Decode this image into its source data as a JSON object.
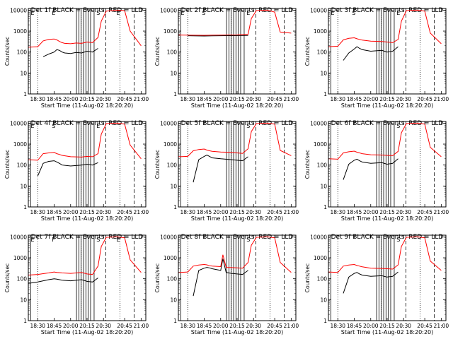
{
  "figure": {
    "xlabel": "Start Time (11-Aug-02 18:20:20)",
    "ylabel": "Counts/sec",
    "xticks": [
      "18:30",
      "18:45",
      "20:00",
      "20:15",
      "20:30",
      "20:45",
      "21:00"
    ],
    "yticks": [
      "1",
      "10",
      "100",
      "1000",
      "10000"
    ],
    "colors": {
      "events": "#000000",
      "lld": "#ff0000",
      "axes": "#000000",
      "background": "#ffffff"
    }
  },
  "chart_data": [
    {
      "type": "line",
      "title": "Det 1f BLACK = Events, RED = LLD",
      "xlabel": "Start Time (11-Aug-02 18:20:20)",
      "ylabel": "Counts/sec",
      "x_ticks": [
        "18:30",
        "18:45",
        "20:00",
        "20:15",
        "20:30",
        "20:45",
        "21:00"
      ],
      "y_scale": "log",
      "ylim": [
        1,
        10000
      ],
      "grid": false,
      "markers": [
        "E",
        "E",
        "S",
        "E"
      ],
      "series": [
        {
          "name": "Events",
          "color": "#000000",
          "x": [
            "18:35",
            "18:40",
            "18:45",
            "18:50",
            "18:55",
            "19:00",
            "19:05",
            "20:00",
            "20:05",
            "20:10",
            "20:15",
            "20:20",
            "20:25"
          ],
          "y": [
            60,
            80,
            100,
            130,
            120,
            100,
            90,
            85,
            95,
            90,
            110,
            100,
            150
          ]
        },
        {
          "name": "LLD",
          "color": "#ff0000",
          "x": [
            "18:20",
            "18:30",
            "18:35",
            "18:40",
            "18:45",
            "18:50",
            "18:55",
            "19:00",
            "19:05",
            "20:00",
            "20:05",
            "20:10",
            "20:15",
            "20:20",
            "20:25",
            "20:28",
            "20:32",
            "20:40",
            "20:45",
            "20:50",
            "21:00"
          ],
          "y": [
            170,
            180,
            340,
            400,
            420,
            380,
            320,
            280,
            260,
            250,
            270,
            260,
            300,
            280,
            500,
            3000,
            9000,
            10000,
            9500,
            1000,
            200
          ]
        }
      ]
    },
    {
      "type": "line",
      "title": "Det 2f BLACK = Events, RED = LLD",
      "xlabel": "Start Time (11-Aug-02 18:20:20)",
      "ylabel": "Counts/sec",
      "x_ticks": [
        "18:30",
        "18:45",
        "20:00",
        "20:15",
        "20:30",
        "20:45",
        "21:00"
      ],
      "y_scale": "log",
      "ylim": [
        1,
        10000
      ],
      "grid": false,
      "markers": [
        "E",
        "S",
        "E"
      ],
      "series": [
        {
          "name": "Events",
          "color": "#000000",
          "x": [
            "18:30",
            "18:45",
            "19:00",
            "20:00",
            "20:15",
            "20:25"
          ],
          "y": [
            600,
            580,
            590,
            600,
            610,
            620
          ]
        },
        {
          "name": "LLD",
          "color": "#ff0000",
          "x": [
            "18:20",
            "18:30",
            "18:45",
            "19:00",
            "20:00",
            "20:15",
            "20:25",
            "20:28",
            "20:32",
            "20:40",
            "20:45",
            "20:50",
            "21:00"
          ],
          "y": [
            650,
            640,
            630,
            640,
            650,
            660,
            700,
            4000,
            9500,
            10000,
            8000,
            900,
            800
          ]
        }
      ]
    },
    {
      "type": "line",
      "title": "Det 3f BLACK = Events, RED = LLD",
      "xlabel": "Start Time (11-Aug-02 18:20:20)",
      "ylabel": "Counts/sec",
      "x_ticks": [
        "18:30",
        "18:45",
        "20:00",
        "20:15",
        "20:30",
        "20:45",
        "21:00"
      ],
      "y_scale": "log",
      "ylim": [
        1,
        10000
      ],
      "grid": false,
      "markers": [
        "E",
        "S",
        "E"
      ],
      "series": [
        {
          "name": "Events",
          "color": "#000000",
          "x": [
            "18:35",
            "18:40",
            "18:45",
            "18:50",
            "18:55",
            "19:00",
            "20:00",
            "20:10",
            "20:15",
            "20:20",
            "20:25"
          ],
          "y": [
            40,
            90,
            140,
            180,
            150,
            130,
            110,
            120,
            100,
            110,
            180
          ]
        },
        {
          "name": "LLD",
          "color": "#ff0000",
          "x": [
            "18:20",
            "18:30",
            "18:35",
            "18:40",
            "18:45",
            "18:50",
            "18:55",
            "19:00",
            "20:00",
            "20:10",
            "20:15",
            "20:20",
            "20:25",
            "20:28",
            "20:32",
            "20:40",
            "20:45",
            "20:50",
            "21:00"
          ],
          "y": [
            180,
            190,
            380,
            450,
            480,
            430,
            400,
            370,
            330,
            320,
            300,
            280,
            400,
            3000,
            9500,
            10000,
            9000,
            800,
            250
          ]
        }
      ]
    },
    {
      "type": "line",
      "title": "Det 4f BLACK = Events, RED = LLD",
      "xlabel": "Start Time (11-Aug-02 18:20:20)",
      "ylabel": "Counts/sec",
      "x_ticks": [
        "18:30",
        "18:45",
        "20:00",
        "20:15",
        "20:30",
        "20:45",
        "21:00"
      ],
      "y_scale": "log",
      "ylim": [
        1,
        10000
      ],
      "grid": false,
      "markers": [
        "E",
        "S",
        "E"
      ],
      "series": [
        {
          "name": "Events",
          "color": "#000000",
          "x": [
            "18:30",
            "18:35",
            "18:40",
            "18:45",
            "18:50",
            "18:55",
            "19:00",
            "20:00",
            "20:10",
            "20:15",
            "20:20",
            "20:25"
          ],
          "y": [
            30,
            120,
            150,
            160,
            140,
            120,
            100,
            90,
            100,
            110,
            100,
            130
          ]
        },
        {
          "name": "LLD",
          "color": "#ff0000",
          "x": [
            "18:20",
            "18:30",
            "18:35",
            "18:40",
            "18:45",
            "18:50",
            "18:55",
            "19:00",
            "20:00",
            "20:10",
            "20:15",
            "20:20",
            "20:25",
            "20:28",
            "20:32",
            "20:40",
            "20:45",
            "20:50",
            "21:00"
          ],
          "y": [
            180,
            170,
            350,
            380,
            400,
            350,
            320,
            290,
            250,
            240,
            260,
            250,
            350,
            3000,
            9500,
            10000,
            9000,
            900,
            200
          ]
        }
      ]
    },
    {
      "type": "line",
      "title": "Det 5f BLACK = Events, RED = LLD",
      "xlabel": "Start Time (11-Aug-02 18:20:20)",
      "ylabel": "Counts/sec",
      "x_ticks": [
        "18:30",
        "18:45",
        "20:00",
        "20:15",
        "20:30",
        "20:45",
        "21:00"
      ],
      "y_scale": "log",
      "ylim": [
        1,
        10000
      ],
      "grid": false,
      "markers": [
        "S"
      ],
      "series": [
        {
          "name": "Events",
          "color": "#000000",
          "x": [
            "18:35",
            "18:40",
            "18:45",
            "18:50",
            "18:55",
            "19:00",
            "20:00",
            "20:10",
            "20:15",
            "20:20",
            "20:25"
          ],
          "y": [
            15,
            180,
            260,
            300,
            260,
            220,
            200,
            180,
            170,
            160,
            250
          ]
        },
        {
          "name": "LLD",
          "color": "#ff0000",
          "x": [
            "18:20",
            "18:30",
            "18:35",
            "18:40",
            "18:45",
            "18:50",
            "18:55",
            "19:00",
            "20:00",
            "20:10",
            "20:15",
            "20:20",
            "20:25",
            "20:28",
            "20:32",
            "20:40",
            "20:45",
            "20:50",
            "21:00"
          ],
          "y": [
            250,
            260,
            480,
            550,
            580,
            520,
            480,
            450,
            420,
            400,
            380,
            360,
            600,
            4000,
            9500,
            10000,
            9000,
            500,
            280
          ]
        }
      ]
    },
    {
      "type": "line",
      "title": "Det 6f BLACK = Events, RED = LLD",
      "xlabel": "Start Time (11-Aug-02 18:20:20)",
      "ylabel": "Counts/sec",
      "x_ticks": [
        "18:30",
        "18:45",
        "20:00",
        "20:15",
        "20:30",
        "20:45",
        "21:00"
      ],
      "y_scale": "log",
      "ylim": [
        1,
        10000
      ],
      "grid": false,
      "markers": [
        "S"
      ],
      "series": [
        {
          "name": "Events",
          "color": "#000000",
          "x": [
            "18:35",
            "18:40",
            "18:45",
            "18:50",
            "18:55",
            "19:00",
            "20:00",
            "20:10",
            "20:15",
            "20:20",
            "20:25"
          ],
          "y": [
            20,
            110,
            170,
            190,
            160,
            140,
            120,
            130,
            110,
            120,
            200
          ]
        },
        {
          "name": "LLD",
          "color": "#ff0000",
          "x": [
            "18:20",
            "18:30",
            "18:35",
            "18:40",
            "18:45",
            "18:50",
            "18:55",
            "19:00",
            "20:00",
            "20:10",
            "20:15",
            "20:20",
            "20:25",
            "20:28",
            "20:32",
            "20:40",
            "20:45",
            "20:50",
            "21:00"
          ],
          "y": [
            200,
            190,
            380,
            430,
            460,
            410,
            380,
            350,
            310,
            300,
            290,
            280,
            450,
            3500,
            9500,
            10000,
            9000,
            700,
            250
          ]
        }
      ]
    },
    {
      "type": "line",
      "title": "Det 7f BLACK = Events, RED = LLD",
      "xlabel": "Start Time (11-Aug-02 18:20:20)",
      "ylabel": "Counts/sec",
      "x_ticks": [
        "18:30",
        "18:45",
        "20:00",
        "20:15",
        "20:30",
        "20:45",
        "21:00"
      ],
      "y_scale": "log",
      "ylim": [
        1,
        10000
      ],
      "grid": false,
      "markers": [
        "E",
        "F",
        "S",
        "E"
      ],
      "series": [
        {
          "name": "Events",
          "color": "#000000",
          "x": [
            "18:20",
            "18:30",
            "18:40",
            "18:45",
            "18:50",
            "19:00",
            "20:00",
            "20:10",
            "20:15",
            "20:20",
            "20:25"
          ],
          "y": [
            60,
            70,
            90,
            100,
            95,
            85,
            80,
            90,
            75,
            70,
            110
          ]
        },
        {
          "name": "LLD",
          "color": "#ff0000",
          "x": [
            "18:20",
            "18:30",
            "18:40",
            "18:45",
            "18:50",
            "19:00",
            "20:00",
            "20:10",
            "20:15",
            "20:20",
            "20:25",
            "20:28",
            "20:32",
            "20:40",
            "20:45",
            "20:50",
            "21:00"
          ],
          "y": [
            150,
            160,
            190,
            210,
            200,
            190,
            180,
            200,
            170,
            160,
            400,
            3500,
            9500,
            10000,
            9000,
            800,
            200
          ]
        }
      ]
    },
    {
      "type": "line",
      "title": "Det 8f BLACK = Events, RED = LLD",
      "xlabel": "Start Time (11-Aug-02 18:20:20)",
      "ylabel": "Counts/sec",
      "x_ticks": [
        "18:30",
        "18:45",
        "20:00",
        "20:15",
        "20:30",
        "20:45",
        "21:00"
      ],
      "y_scale": "log",
      "ylim": [
        1,
        10000
      ],
      "grid": false,
      "markers": [
        "S"
      ],
      "series": [
        {
          "name": "Events",
          "color": "#000000",
          "x": [
            "18:35",
            "18:40",
            "18:45",
            "18:50",
            "18:55",
            "19:00",
            "20:00",
            "20:02",
            "20:05",
            "20:10",
            "20:15",
            "20:20",
            "20:25"
          ],
          "y": [
            15,
            250,
            320,
            350,
            330,
            300,
            250,
            900,
            200,
            180,
            170,
            160,
            250
          ]
        },
        {
          "name": "LLD",
          "color": "#ff0000",
          "x": [
            "18:20",
            "18:30",
            "18:35",
            "18:40",
            "18:45",
            "18:50",
            "18:55",
            "19:00",
            "20:00",
            "20:02",
            "20:05",
            "20:10",
            "20:15",
            "20:20",
            "20:25",
            "20:28",
            "20:32",
            "20:40",
            "20:45",
            "20:50",
            "21:00"
          ],
          "y": [
            200,
            210,
            400,
            450,
            480,
            460,
            420,
            400,
            380,
            1400,
            350,
            340,
            330,
            320,
            600,
            4000,
            9500,
            10000,
            9000,
            600,
            200
          ]
        }
      ]
    },
    {
      "type": "line",
      "title": "Det 9f BLACK = Events, RED = LLD",
      "xlabel": "Start Time (11-Aug-02 18:20:20)",
      "ylabel": "Counts/sec",
      "x_ticks": [
        "18:30",
        "18:45",
        "20:00",
        "20:15",
        "20:30",
        "20:45",
        "21:00"
      ],
      "y_scale": "log",
      "ylim": [
        1,
        10000
      ],
      "grid": false,
      "markers": [
        "S"
      ],
      "series": [
        {
          "name": "Events",
          "color": "#000000",
          "x": [
            "18:35",
            "18:40",
            "18:45",
            "18:50",
            "18:55",
            "19:00",
            "20:00",
            "20:10",
            "20:15",
            "20:20",
            "20:25"
          ],
          "y": [
            20,
            120,
            180,
            200,
            170,
            150,
            130,
            140,
            120,
            130,
            210
          ]
        },
        {
          "name": "LLD",
          "color": "#ff0000",
          "x": [
            "18:20",
            "18:30",
            "18:35",
            "18:40",
            "18:45",
            "18:50",
            "18:55",
            "19:00",
            "20:00",
            "20:10",
            "20:15",
            "20:20",
            "20:25",
            "20:28",
            "20:32",
            "20:40",
            "20:45",
            "20:50",
            "21:00"
          ],
          "y": [
            210,
            200,
            400,
            450,
            480,
            430,
            400,
            370,
            320,
            310,
            300,
            290,
            460,
            3500,
            9500,
            10000,
            9000,
            700,
            250
          ]
        }
      ]
    }
  ]
}
